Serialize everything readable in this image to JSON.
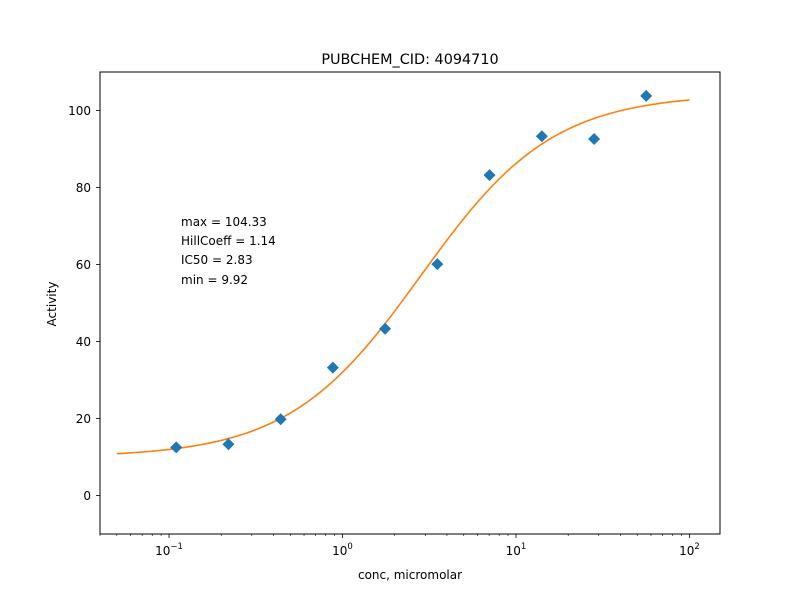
{
  "chart_data": {
    "type": "scatter",
    "title": "PUBCHEM_CID: 4094710",
    "xlabel": "conc, micromolar",
    "ylabel": "Activity",
    "xscale": "log",
    "xlim": [
      0.04,
      150
    ],
    "ylim": [
      -10,
      110
    ],
    "grid": false,
    "x_ticks": [
      {
        "value": 0.1,
        "base": "10",
        "exp": "−1"
      },
      {
        "value": 1,
        "base": "10",
        "exp": "0"
      },
      {
        "value": 10,
        "base": "10",
        "exp": "1"
      },
      {
        "value": 100,
        "base": "10",
        "exp": "2"
      }
    ],
    "y_ticks": [
      0,
      20,
      40,
      60,
      80,
      100
    ],
    "series": [
      {
        "kind": "points",
        "marker": "diamond",
        "color": "#1f77b4",
        "x": [
          0.11,
          0.22,
          0.44,
          0.88,
          1.76,
          3.52,
          7.04,
          14.1,
          28.2,
          56.3
        ],
        "y": [
          12.5,
          13.3,
          19.8,
          33.2,
          43.3,
          60.1,
          83.2,
          93.3,
          92.6,
          103.8
        ]
      },
      {
        "kind": "fit",
        "color": "#ff7f0e",
        "model": "hill",
        "min": 9.92,
        "max": 104.33,
        "ic50": 2.83,
        "hill": 1.14,
        "x_range": [
          0.05,
          100
        ]
      }
    ],
    "annotations": [
      "max = 104.33",
      "HillCoeff = 1.14",
      "IC50 = 2.83",
      "min = 9.92"
    ]
  }
}
